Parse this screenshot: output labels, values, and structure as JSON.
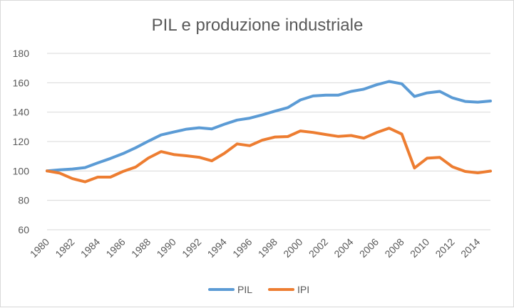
{
  "chart_data": {
    "type": "line",
    "title": "PIL e produzione industriale",
    "xlabel": "",
    "ylabel": "",
    "ylim": [
      60,
      180
    ],
    "y_ticks": [
      60,
      80,
      100,
      120,
      140,
      160,
      180
    ],
    "x_tick_labels": [
      "1980",
      "1982",
      "1984",
      "1986",
      "1988",
      "1990",
      "1992",
      "1994",
      "1996",
      "1998",
      "2000",
      "2002",
      "2004",
      "2006",
      "2008",
      "2010",
      "2012",
      "2014"
    ],
    "grid": true,
    "legend_position": "bottom",
    "x": [
      1980,
      1981,
      1982,
      1983,
      1984,
      1985,
      1986,
      1987,
      1988,
      1989,
      1990,
      1991,
      1992,
      1993,
      1994,
      1995,
      1996,
      1997,
      1998,
      1999,
      2000,
      2001,
      2002,
      2003,
      2004,
      2005,
      2006,
      2007,
      2008,
      2009,
      2010,
      2011,
      2012,
      2013,
      2014,
      2015
    ],
    "series": [
      {
        "name": "PIL",
        "color": "#5b9bd5",
        "values": [
          100,
          100.8,
          101.3,
          102.3,
          105.5,
          108.5,
          111.8,
          115.8,
          120.3,
          124.5,
          126.5,
          128.4,
          129.4,
          128.6,
          131.8,
          134.6,
          135.9,
          138.2,
          140.7,
          143.1,
          148.3,
          151,
          151.6,
          151.6,
          154.1,
          155.6,
          158.6,
          160.9,
          159.3,
          150.7,
          153.1,
          154.1,
          149.7,
          147.3,
          146.8,
          147.6
        ]
      },
      {
        "name": "IPI",
        "color": "#ed7d31",
        "values": [
          100,
          98.5,
          94.8,
          92.6,
          95.8,
          95.8,
          99.7,
          102.7,
          108.8,
          113.2,
          111.2,
          110.3,
          109.3,
          106.9,
          112,
          118.4,
          117.2,
          121,
          123.1,
          123.4,
          127.2,
          126.2,
          124.8,
          123.5,
          124.1,
          122.3,
          126.1,
          129.1,
          125.1,
          102,
          108.7,
          109.2,
          102.8,
          99.7,
          98.7,
          99.9
        ]
      }
    ]
  }
}
